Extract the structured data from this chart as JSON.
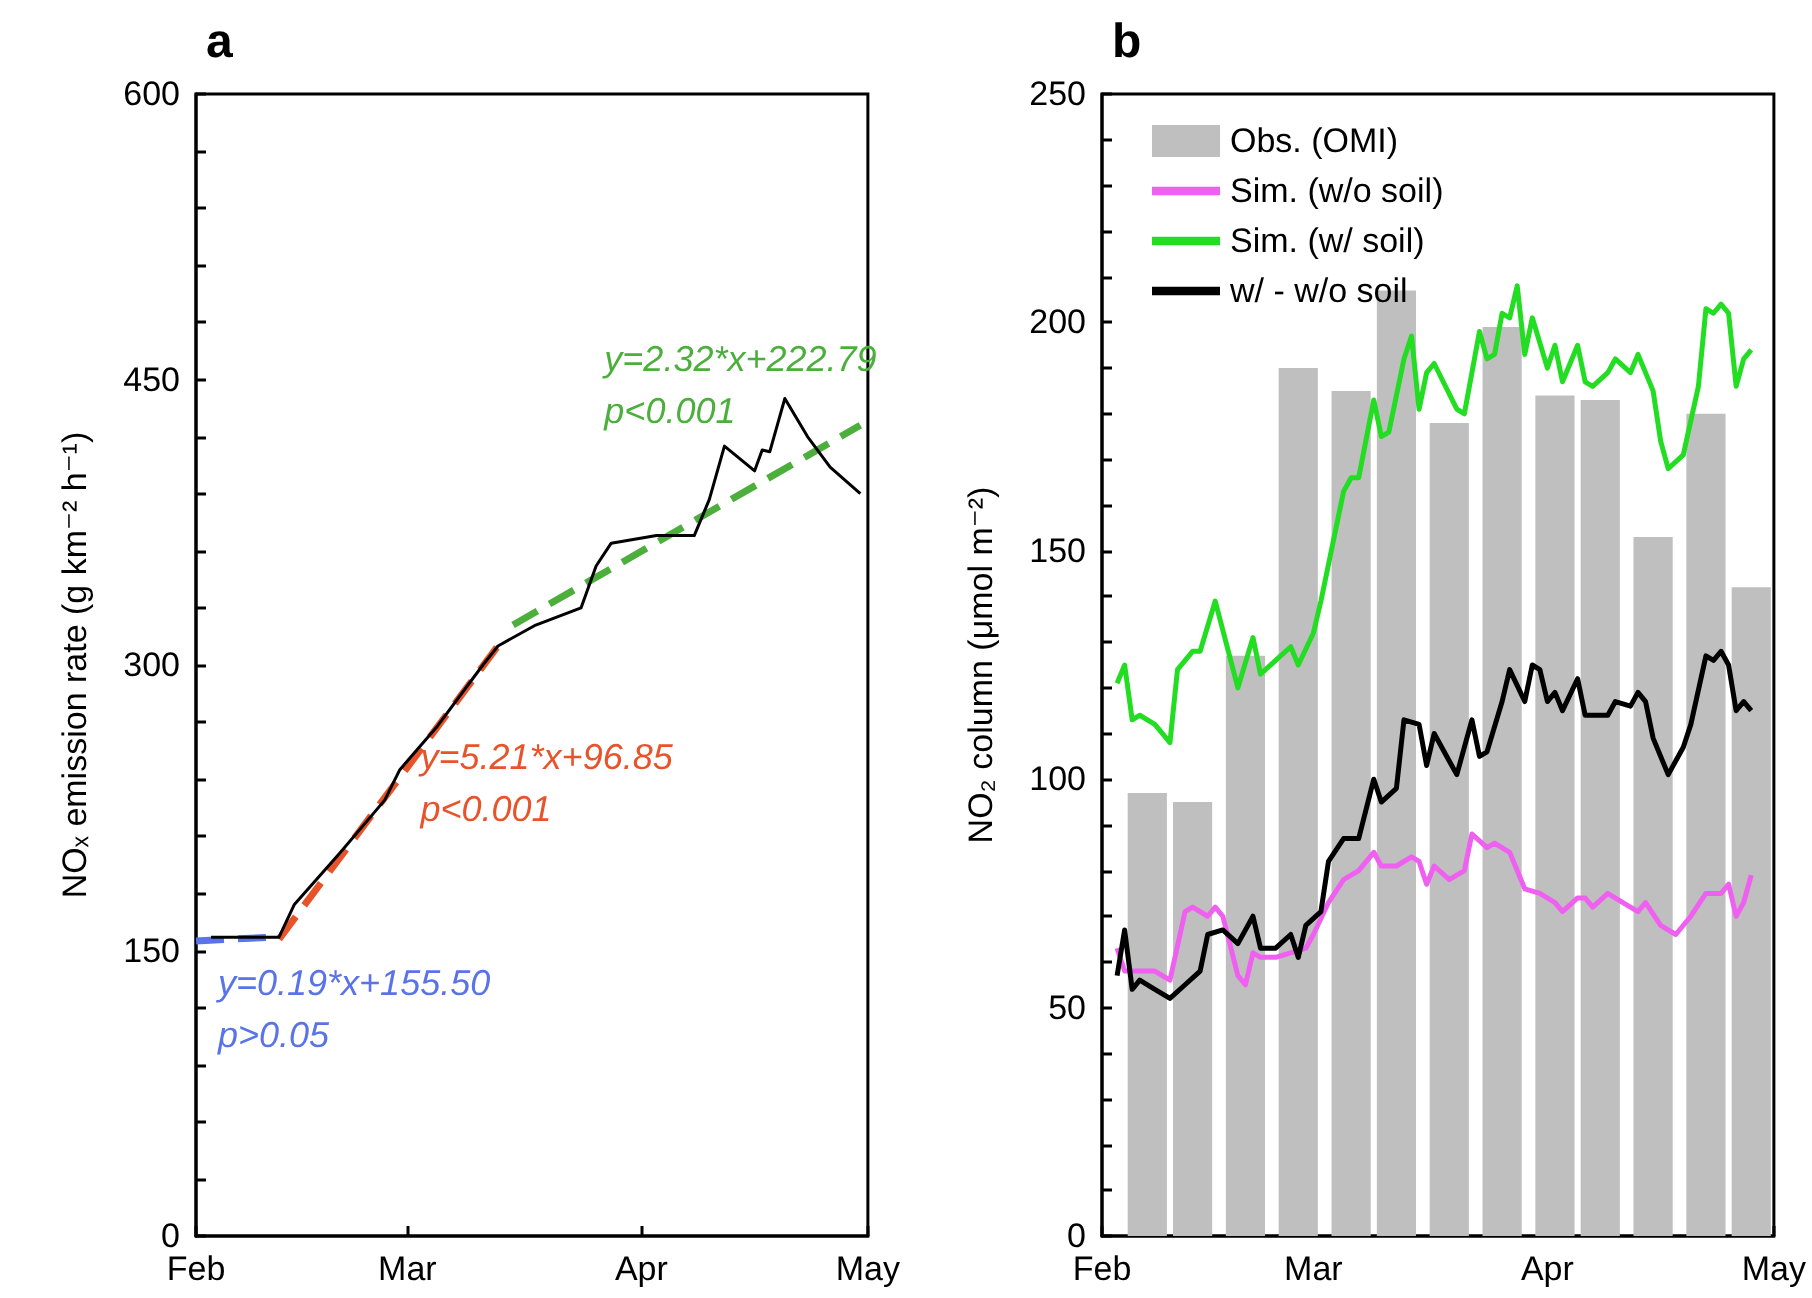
{
  "chart_data": [
    {
      "type": "line",
      "title": "a",
      "ylabel": "NOₓ emission rate (g km⁻² h⁻¹)",
      "marker": "none",
      "xlim": [
        "--02-01",
        "--05-01"
      ],
      "xticks": [
        {
          "value": "--02-01",
          "label": "Feb"
        },
        {
          "value": "--03-01",
          "label": "Mar"
        },
        {
          "value": "--04-01",
          "label": "Apr"
        },
        {
          "value": "--05-01",
          "label": "May"
        }
      ],
      "ylim": [
        0,
        600
      ],
      "yticks": [
        0,
        {
          "value": 30,
          "label": null
        },
        {
          "value": 60,
          "label": null
        },
        {
          "value": 90,
          "label": null
        },
        {
          "value": 120,
          "label": null
        },
        150,
        {
          "value": 180,
          "label": null
        },
        {
          "value": 210,
          "label": null
        },
        {
          "value": 240,
          "label": null
        },
        {
          "value": 270,
          "label": null
        },
        300,
        {
          "value": 330,
          "label": null
        },
        {
          "value": 360,
          "label": null
        },
        {
          "value": 390,
          "label": null
        },
        {
          "value": 420,
          "label": null
        },
        450,
        {
          "value": 480,
          "label": null
        },
        {
          "value": 510,
          "label": null
        },
        {
          "value": 540,
          "label": null
        },
        {
          "value": 570,
          "label": null
        },
        600
      ],
      "series": [
        {
          "color": "#000000",
          "line_style": "solid",
          "x": [
            "--02-03",
            "--02-12",
            "--02-14",
            "--02-20",
            "--02-26",
            "--02-28",
            "--03-05",
            "--03-11",
            "--03-13",
            "--03-18",
            "--03-24",
            "--03-26",
            "--03-28",
            "--04-03",
            "--04-08",
            "--04-10",
            "--04-12",
            "--04-16",
            "--04-17",
            "--04-18",
            "--04-20",
            "--04-23",
            "--04-26",
            "--04-30"
          ],
          "values": [
            157,
            157,
            174,
            201,
            229,
            245,
            268,
            300,
            310,
            321,
            330,
            352,
            364,
            368,
            368,
            387,
            415,
            402,
            413,
            412,
            440,
            420,
            404,
            390
          ]
        },
        {
          "color": "#5a73e8",
          "line_style": "dashed",
          "x": [
            "--02-01",
            "--02-11"
          ],
          "values": [
            155,
            157
          ]
        },
        {
          "color": "#e8542a",
          "line_style": "dashed",
          "x": [
            "--02-12",
            "--03-13"
          ],
          "values": [
            156,
            310
          ]
        },
        {
          "color": "#4caf3c",
          "line_style": "dashed",
          "x": [
            "--03-15",
            "--04-30"
          ],
          "values": [
            321,
            426
          ]
        }
      ],
      "annotations": [
        "y=0.19*x+155.50\np>0.05",
        "y=5.21*x+96.85\np<0.001",
        "y=2.32*x+222.79\np<0.001"
      ]
    },
    {
      "type": "bar",
      "title": "b",
      "ylabel": "NO₂ column (μmol m⁻²)",
      "legend": "top left",
      "marker": "none",
      "xlim": [
        "--02-01",
        "--05-01"
      ],
      "xticks": [
        {
          "value": "--02-01",
          "label": "Feb"
        },
        {
          "value": "--03-01",
          "label": "Mar"
        },
        {
          "value": "--04-01",
          "label": "Apr"
        },
        {
          "value": "--05-01",
          "label": "May"
        }
      ],
      "ylim": [
        0,
        250
      ],
      "yticks": [
        0,
        {
          "value": 10,
          "label": null
        },
        {
          "value": 20,
          "label": null
        },
        {
          "value": 30,
          "label": null
        },
        {
          "value": 40,
          "label": null
        },
        50,
        {
          "value": 60,
          "label": null
        },
        {
          "value": 70,
          "label": null
        },
        {
          "value": 80,
          "label": null
        },
        {
          "value": 90,
          "label": null
        },
        100,
        {
          "value": 110,
          "label": null
        },
        {
          "value": 120,
          "label": null
        },
        {
          "value": 130,
          "label": null
        },
        {
          "value": 140,
          "label": null
        },
        150,
        {
          "value": 160,
          "label": null
        },
        {
          "value": 170,
          "label": null
        },
        {
          "value": 180,
          "label": null
        },
        {
          "value": 190,
          "label": null
        },
        200,
        {
          "value": 210,
          "label": null
        },
        {
          "value": 220,
          "label": null
        },
        {
          "value": 230,
          "label": null
        },
        {
          "value": 240,
          "label": null
        },
        250
      ],
      "series": [
        {
          "name": "Obs. (OMI)",
          "color": "#bfbfbf",
          "x": [
            "--02-07",
            "--02-13",
            "--02-20",
            "--02-27",
            "--03-06",
            "--03-12",
            "--03-19",
            "--03-26",
            "--04-02",
            "--04-08",
            "--04-15",
            "--04-22",
            "--04-28"
          ],
          "values": [
            97,
            95,
            127,
            190,
            185,
            207,
            178,
            199,
            184,
            183,
            153,
            180,
            142
          ]
        },
        {
          "name": "Sim. (w/o soil)",
          "type": "line",
          "color": "#f060f0",
          "line_style": "solid",
          "x": [
            "--02-03",
            "--02-04",
            "--02-06",
            "--02-08",
            "--02-10",
            "--02-12",
            "--02-13",
            "--02-15",
            "--02-16",
            "--02-17",
            "--02-19",
            "--02-20",
            "--02-21",
            "--02-22",
            "--02-24",
            "--02-26",
            "--02-28",
            "--03-01",
            "--03-03",
            "--03-05",
            "--03-07",
            "--03-09",
            "--03-10",
            "--03-12",
            "--03-14",
            "--03-15",
            "--03-16",
            "--03-17",
            "--03-19",
            "--03-21",
            "--03-22",
            "--03-24",
            "--03-25",
            "--03-27",
            "--03-29",
            "--03-31",
            "--04-02",
            "--04-03",
            "--04-05",
            "--04-06",
            "--04-07",
            "--04-09",
            "--04-11",
            "--04-13",
            "--04-14",
            "--04-16",
            "--04-18",
            "--04-20",
            "--04-22",
            "--04-24",
            "--04-25",
            "--04-26",
            "--04-27",
            "--04-28"
          ],
          "values": [
            63,
            58,
            58,
            58,
            56,
            71,
            72,
            70,
            72,
            70,
            57,
            55,
            62,
            61,
            61,
            62,
            63,
            66,
            73,
            78,
            80,
            84,
            81,
            81,
            83,
            82,
            77,
            81,
            78,
            80,
            88,
            85,
            86,
            84,
            76,
            75,
            73,
            71,
            74,
            74,
            72,
            75,
            73,
            71,
            73,
            68,
            66,
            70,
            75,
            75,
            77,
            70,
            73,
            79
          ]
        },
        {
          "name": "Sim. (w/ soil)",
          "type": "line",
          "color": "#22dd22",
          "line_style": "solid",
          "x": [
            "--02-03",
            "--02-04",
            "--02-05",
            "--02-06",
            "--02-08",
            "--02-10",
            "--02-11",
            "--02-13",
            "--02-14",
            "--02-16",
            "--02-19",
            "--02-21",
            "--02-22",
            "--02-24",
            "--02-26",
            "--02-27",
            "--03-01",
            "--03-02",
            "--03-05",
            "--03-06",
            "--03-07",
            "--03-09",
            "--03-10",
            "--03-11",
            "--03-13",
            "--03-14",
            "--03-15",
            "--03-16",
            "--03-17",
            "--03-20",
            "--03-21",
            "--03-23",
            "--03-24",
            "--03-25",
            "--03-26",
            "--03-27",
            "--03-28",
            "--03-29",
            "--03-30",
            "--04-01",
            "--04-02",
            "--04-03",
            "--04-05",
            "--04-06",
            "--04-07",
            "--04-09",
            "--04-10",
            "--04-12",
            "--04-13",
            "--04-15",
            "--04-16",
            "--04-17",
            "--04-19",
            "--04-21",
            "--04-22",
            "--04-23",
            "--04-24",
            "--04-25",
            "--04-26",
            "--04-27",
            "--04-28"
          ],
          "values": [
            121,
            125,
            113,
            114,
            112,
            108,
            124,
            128,
            128,
            139,
            120,
            131,
            123,
            126,
            129,
            125,
            132,
            139,
            163,
            166,
            166,
            183,
            175,
            176,
            192,
            197,
            181,
            189,
            191,
            181,
            180,
            198,
            192,
            193,
            202,
            201,
            208,
            193,
            201,
            190,
            195,
            187,
            195,
            187,
            186,
            189,
            192,
            189,
            193,
            185,
            174,
            168,
            171,
            186,
            203,
            202,
            204,
            202,
            186,
            192,
            194
          ]
        },
        {
          "name": "w/ - w/o soil",
          "type": "line",
          "color": "#000000",
          "line_style": "solid",
          "x": [
            "--02-03",
            "--02-04",
            "--02-05",
            "--02-06",
            "--02-08",
            "--02-10",
            "--02-12",
            "--02-14",
            "--02-15",
            "--02-17",
            "--02-19",
            "--02-21",
            "--02-22",
            "--02-24",
            "--02-26",
            "--02-27",
            "--02-28",
            "--03-02",
            "--03-03",
            "--03-05",
            "--03-07",
            "--03-09",
            "--03-10",
            "--03-12",
            "--03-13",
            "--03-15",
            "--03-16",
            "--03-17",
            "--03-19",
            "--03-20",
            "--03-22",
            "--03-23",
            "--03-24",
            "--03-26",
            "--03-27",
            "--03-29",
            "--03-30",
            "--03-31",
            "--04-01",
            "--04-02",
            "--04-03",
            "--04-05",
            "--04-06",
            "--04-08",
            "--04-09",
            "--04-10",
            "--04-12",
            "--04-13",
            "--04-14",
            "--04-15",
            "--04-17",
            "--04-19",
            "--04-20",
            "--04-22",
            "--04-23",
            "--04-24",
            "--04-25",
            "--04-26",
            "--04-27",
            "--04-28"
          ],
          "values": [
            57,
            67,
            54,
            56,
            54,
            52,
            55,
            58,
            66,
            67,
            64,
            70,
            63,
            63,
            66,
            61,
            68,
            71,
            82,
            87,
            87,
            100,
            95,
            98,
            113,
            112,
            103,
            110,
            104,
            101,
            113,
            105,
            106,
            117,
            124,
            117,
            125,
            124,
            117,
            119,
            115,
            122,
            114,
            114,
            114,
            117,
            116,
            119,
            117,
            109,
            101,
            107,
            112,
            127,
            126,
            128,
            125,
            115,
            117,
            115
          ]
        }
      ]
    }
  ]
}
